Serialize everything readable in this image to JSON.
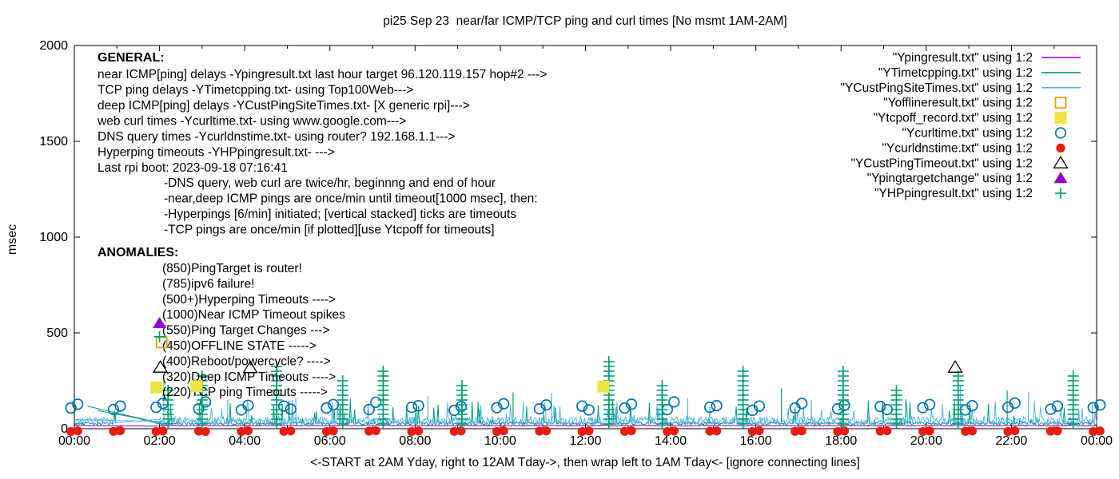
{
  "title": "pi25 Sep 23  near/far ICMP/TCP ping and curl times [No msmt 1AM-2AM]",
  "ylabel": "msec",
  "xlabel": "<-START at 2AM Yday, right to 12AM Tday->, then wrap left to 1AM Tday<- [ignore connecting lines]",
  "general": {
    "heading": "GENERAL:",
    "lines": [
      "near ICMP[ping] delays -Ypingresult.txt last hour target 96.120.119.157 hop#2 --->",
      "TCP ping delays -YTimetcpping.txt- using Top100Web--->",
      "deep ICMP[ping] delays -YCustPingSiteTimes.txt- [X generic rpi]--->",
      "web curl times -Ycurltime.txt- using www.google.com--->",
      "DNS query times -Ycurldnstime.txt- using router? 192.168.1.1--->",
      "Hyperping timeouts -YHPpingresult.txt- --->",
      "Last rpi boot: 2023-09-18 07:16:41"
    ],
    "notes": [
      "-DNS query, web curl are twice/hr, beginnng and end of hour",
      "-near,deep ICMP pings are once/min until timeout[1000 msec], then:",
      " -Hyperpings [6/min] initiated; [vertical stacked] ticks are timeouts",
      "-TCP pings are once/min [if plotted][use Ytcpoff for timeouts]"
    ]
  },
  "anomalies": {
    "heading": "ANOMALIES:",
    "lines": [
      "(850)PingTarget is router!",
      "(785)ipv6 failure!",
      "(500+)Hyperping Timeouts ---->",
      "(1000)Near ICMP Timeout spikes",
      "(550)Ping Target Changes --->",
      "(450)OFFLINE STATE ----->",
      "(400)Reboot/powercycle? ---->",
      "(320)Deep ICMP Timeouts ---->",
      "(220)TCP ping Timeouts ----->"
    ]
  },
  "legend": [
    {
      "label": "\"Ypingresult.txt\" using 1:2",
      "marker": "line",
      "color": "#9400D3"
    },
    {
      "label": "\"YTimetcpping.txt\" using 1:2",
      "marker": "line",
      "color": "#009E73"
    },
    {
      "label": "\"YCustPingSiteTimes.txt\" using 1:2",
      "marker": "line",
      "color": "#56B4E9"
    },
    {
      "label": "\"Yofflineresult.txt\" using 1:2",
      "marker": "square-open",
      "color": "#E69F00"
    },
    {
      "label": "\"Ytcpoff_record.txt\" using 1:2",
      "marker": "square-filled",
      "color": "#F0E442"
    },
    {
      "label": "\"Ycurltime.txt\" using 1:2",
      "marker": "circle-open",
      "color": "#0072B2"
    },
    {
      "label": "\"Ycurldnstime.txt\" using 1:2",
      "marker": "circle-filled",
      "color": "#E51E10"
    },
    {
      "label": "\"YCustPingTimeout.txt\" using 1:2",
      "marker": "triangle-open",
      "color": "#000000"
    },
    {
      "label": "\"Ypingtargetchange\" using 1:2",
      "marker": "triangle-filled",
      "color": "#9400D3"
    },
    {
      "label": "\"YHPpingresult.txt\" using 1:2",
      "marker": "plus",
      "color": "#009E73"
    }
  ],
  "axes": {
    "ylim": [
      0,
      2000
    ],
    "xlim_hours": [
      0,
      24
    ],
    "y_ticks": [
      0,
      500,
      1000,
      1500,
      2000
    ],
    "x_tick_labels": [
      "00:00",
      "02:00",
      "04:00",
      "06:00",
      "08:00",
      "10:00",
      "12:00",
      "14:00",
      "16:00",
      "18:00",
      "20:00",
      "22:00",
      "00:00"
    ],
    "x_major_step_hours": 2,
    "x_minor_step_hours": 1,
    "grid": false,
    "legend_position": "top-right"
  },
  "chart_data": {
    "type": "line",
    "title": "pi25 Sep 23  near/far ICMP/TCP ping and curl times [No msmt 1AM-2AM]",
    "xlabel_units": "time of day (hours)",
    "ylabel": "msec",
    "measurement_gap_hours": [
      1,
      2
    ],
    "series": [
      {
        "name": "Ypingresult.txt",
        "kind": "noisy-line",
        "color": "#9400D3",
        "baseline": 16,
        "noise": 2.5,
        "spike_prob": 0,
        "spike_max": 0,
        "spikes": []
      },
      {
        "name": "YTimetcpping.txt",
        "kind": "noisy-line",
        "color": "#009E73",
        "baseline": 28,
        "noise": 8,
        "spike_prob": 0.07,
        "spike_max": 130,
        "spikes": [
          [
            2.2,
            210
          ],
          [
            3.0,
            280
          ],
          [
            4.75,
            330
          ],
          [
            6.3,
            250
          ],
          [
            7.25,
            300
          ],
          [
            9.1,
            240
          ],
          [
            10.3,
            190
          ],
          [
            12.55,
            350
          ],
          [
            13.8,
            230
          ],
          [
            15.7,
            300
          ],
          [
            16.6,
            210
          ],
          [
            18.05,
            310
          ],
          [
            19.3,
            220
          ],
          [
            20.75,
            295
          ],
          [
            21.9,
            200
          ],
          [
            23.45,
            280
          ]
        ],
        "connectors": [
          [
            [
              0.55,
              95
            ],
            [
              2.02,
              32
            ]
          ],
          [
            [
              0.3,
              118
            ],
            [
              2.02,
              30
            ]
          ]
        ]
      },
      {
        "name": "YCustPingSiteTimes.txt",
        "kind": "noisy-line",
        "color": "#56B4E9",
        "baseline": 42,
        "noise": 20,
        "spike_prob": 0.05,
        "spike_max": 110,
        "spikes": [
          [
            2.1,
            255
          ],
          [
            3.6,
            150
          ],
          [
            5.2,
            160
          ],
          [
            8.3,
            170
          ],
          [
            11.2,
            185
          ],
          [
            14.4,
            160
          ],
          [
            17.3,
            150
          ],
          [
            20.8,
            230
          ],
          [
            22.4,
            190
          ],
          [
            23.9,
            140
          ]
        ],
        "connectors": [
          [
            [
              0.02,
              48
            ],
            [
              2.02,
              38
            ]
          ]
        ]
      },
      {
        "name": "Yofflineresult.txt",
        "kind": "points",
        "marker": "square-open",
        "color": "#E69F00",
        "points": [
          [
            2.05,
            450
          ]
        ]
      },
      {
        "name": "Ytcpoff_record.txt",
        "kind": "points",
        "marker": "square-filled",
        "color": "#F0E442",
        "points": [
          [
            1.93,
            215
          ],
          [
            2.87,
            222
          ],
          [
            12.42,
            220
          ]
        ]
      },
      {
        "name": "Ycurltime.txt",
        "kind": "hour-pairs",
        "marker": "circle-open",
        "color": "#0072B2",
        "pairs": [
          [
            0,
            108,
            128
          ],
          [
            1,
            100,
            118
          ],
          [
            2,
            112,
            132
          ],
          [
            3,
            104,
            140
          ],
          [
            4,
            98,
            122
          ],
          [
            5,
            118,
            102
          ],
          [
            6,
            108,
            126
          ],
          [
            7,
            100,
            138
          ],
          [
            8,
            112,
            120
          ],
          [
            9,
            96,
            116
          ],
          [
            10,
            110,
            130
          ],
          [
            11,
            104,
            124
          ],
          [
            12,
            118,
            98
          ],
          [
            13,
            108,
            128
          ],
          [
            14,
            100,
            140
          ],
          [
            15,
            112,
            120
          ],
          [
            16,
            96,
            118
          ],
          [
            17,
            108,
            132
          ],
          [
            18,
            104,
            122
          ],
          [
            19,
            116,
            100
          ],
          [
            20,
            110,
            126
          ],
          [
            21,
            98,
            120
          ],
          [
            22,
            112,
            134
          ],
          [
            23,
            102,
            118
          ],
          [
            24,
            110,
            124
          ]
        ]
      },
      {
        "name": "Ycurldnstime.txt",
        "kind": "hour-pairs",
        "marker": "circle-filled",
        "color": "#E51E10",
        "pairs": [
          [
            0,
            6,
            9
          ],
          [
            1,
            7,
            10
          ],
          [
            2,
            6,
            9
          ],
          [
            3,
            8,
            6
          ],
          [
            4,
            6,
            10
          ],
          [
            5,
            7,
            9
          ],
          [
            6,
            6,
            9
          ],
          [
            7,
            8,
            10
          ],
          [
            8,
            6,
            9
          ],
          [
            9,
            7,
            9
          ],
          [
            10,
            6,
            10
          ],
          [
            11,
            8,
            9
          ],
          [
            12,
            6,
            9
          ],
          [
            13,
            7,
            10
          ],
          [
            14,
            6,
            9
          ],
          [
            15,
            8,
            9
          ],
          [
            16,
            6,
            10
          ],
          [
            17,
            7,
            9
          ],
          [
            18,
            6,
            9
          ],
          [
            19,
            8,
            10
          ],
          [
            20,
            6,
            9
          ],
          [
            21,
            7,
            9
          ],
          [
            22,
            6,
            10
          ],
          [
            23,
            8,
            9
          ],
          [
            24,
            6,
            9
          ]
        ]
      },
      {
        "name": "YCustPingTimeout.txt",
        "kind": "points",
        "marker": "triangle-open",
        "color": "#000000",
        "points": [
          [
            2.02,
            320
          ],
          [
            4.13,
            318
          ],
          [
            20.68,
            320
          ]
        ]
      },
      {
        "name": "Ypingtargetchange",
        "kind": "points",
        "marker": "triangle-filled",
        "color": "#9400D3",
        "points": [
          [
            2.0,
            550
          ]
        ]
      },
      {
        "name": "YHPpingresult.txt",
        "kind": "plus-stacks",
        "marker": "plus",
        "color": "#009E73",
        "points": [
          [
            2.0,
            480
          ]
        ],
        "stacks": [
          [
            2.2,
            210
          ],
          [
            3.0,
            280
          ],
          [
            4.75,
            330
          ],
          [
            6.3,
            250
          ],
          [
            7.25,
            300
          ],
          [
            9.1,
            240
          ],
          [
            12.55,
            350
          ],
          [
            13.8,
            230
          ],
          [
            15.7,
            300
          ],
          [
            18.05,
            310
          ],
          [
            19.3,
            220
          ],
          [
            20.75,
            295
          ],
          [
            23.45,
            280
          ]
        ]
      }
    ]
  },
  "plot": {
    "bg": "#ffffff",
    "frame_color": "#000000"
  }
}
